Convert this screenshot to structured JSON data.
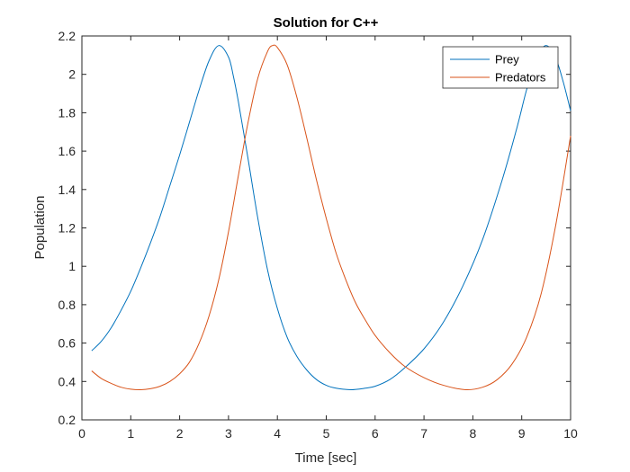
{
  "colors": {
    "background": "#ffffff",
    "axes": "#262626",
    "prey": "#0072BD",
    "predators": "#D95319"
  },
  "chart_data": {
    "type": "line",
    "title": "Solution for C++",
    "xlabel": "Time [sec]",
    "ylabel": "Population",
    "xlim": [
      0,
      10
    ],
    "ylim": [
      0.2,
      2.2
    ],
    "xticks": [
      "0",
      "1",
      "2",
      "3",
      "4",
      "5",
      "6",
      "7",
      "8",
      "9",
      "10"
    ],
    "yticks": [
      "0.2",
      "0.4",
      "0.6",
      "0.8",
      "1",
      "1.2",
      "1.4",
      "1.6",
      "1.8",
      "2",
      "2.2"
    ],
    "grid": false,
    "box": true,
    "legend_position": "top-right",
    "series": [
      {
        "name": "Prey",
        "color": "#0072BD",
        "points": [
          [
            0.2,
            0.56
          ],
          [
            0.4,
            0.61
          ],
          [
            0.6,
            0.68
          ],
          [
            0.8,
            0.77
          ],
          [
            1.0,
            0.87
          ],
          [
            1.2,
            0.99
          ],
          [
            1.4,
            1.12
          ],
          [
            1.6,
            1.26
          ],
          [
            1.8,
            1.42
          ],
          [
            2.0,
            1.58
          ],
          [
            2.2,
            1.75
          ],
          [
            2.4,
            1.92
          ],
          [
            2.6,
            2.07
          ],
          [
            2.8,
            2.15
          ],
          [
            3.0,
            2.09
          ],
          [
            3.1,
            1.99
          ],
          [
            3.2,
            1.86
          ],
          [
            3.4,
            1.56
          ],
          [
            3.6,
            1.25
          ],
          [
            3.8,
            0.98
          ],
          [
            4.0,
            0.78
          ],
          [
            4.2,
            0.63
          ],
          [
            4.4,
            0.53
          ],
          [
            4.6,
            0.46
          ],
          [
            4.8,
            0.41
          ],
          [
            5.0,
            0.38
          ],
          [
            5.2,
            0.365
          ],
          [
            5.5,
            0.357
          ],
          [
            5.8,
            0.365
          ],
          [
            6.0,
            0.375
          ],
          [
            6.3,
            0.41
          ],
          [
            6.6,
            0.47
          ],
          [
            7.0,
            0.57
          ],
          [
            7.4,
            0.71
          ],
          [
            7.8,
            0.9
          ],
          [
            8.2,
            1.14
          ],
          [
            8.6,
            1.45
          ],
          [
            8.9,
            1.72
          ],
          [
            9.1,
            1.92
          ],
          [
            9.3,
            2.08
          ],
          [
            9.5,
            2.15
          ],
          [
            9.7,
            2.08
          ],
          [
            9.85,
            1.96
          ],
          [
            10.0,
            1.81
          ]
        ]
      },
      {
        "name": "Predators",
        "color": "#D95319",
        "points": [
          [
            0.2,
            0.455
          ],
          [
            0.4,
            0.415
          ],
          [
            0.6,
            0.39
          ],
          [
            0.8,
            0.37
          ],
          [
            1.0,
            0.36
          ],
          [
            1.2,
            0.357
          ],
          [
            1.4,
            0.362
          ],
          [
            1.6,
            0.375
          ],
          [
            1.8,
            0.4
          ],
          [
            2.0,
            0.44
          ],
          [
            2.2,
            0.5
          ],
          [
            2.4,
            0.6
          ],
          [
            2.6,
            0.74
          ],
          [
            2.8,
            0.93
          ],
          [
            3.0,
            1.18
          ],
          [
            3.2,
            1.47
          ],
          [
            3.4,
            1.75
          ],
          [
            3.6,
            1.98
          ],
          [
            3.8,
            2.12
          ],
          [
            3.9,
            2.15
          ],
          [
            4.0,
            2.14
          ],
          [
            4.2,
            2.05
          ],
          [
            4.4,
            1.88
          ],
          [
            4.6,
            1.67
          ],
          [
            4.8,
            1.45
          ],
          [
            5.0,
            1.25
          ],
          [
            5.2,
            1.07
          ],
          [
            5.4,
            0.93
          ],
          [
            5.6,
            0.81
          ],
          [
            5.8,
            0.72
          ],
          [
            6.0,
            0.64
          ],
          [
            6.3,
            0.55
          ],
          [
            6.6,
            0.48
          ],
          [
            7.0,
            0.42
          ],
          [
            7.4,
            0.38
          ],
          [
            7.85,
            0.357
          ],
          [
            8.2,
            0.37
          ],
          [
            8.5,
            0.41
          ],
          [
            8.8,
            0.49
          ],
          [
            9.1,
            0.63
          ],
          [
            9.4,
            0.86
          ],
          [
            9.7,
            1.22
          ],
          [
            10.0,
            1.68
          ]
        ]
      }
    ]
  }
}
